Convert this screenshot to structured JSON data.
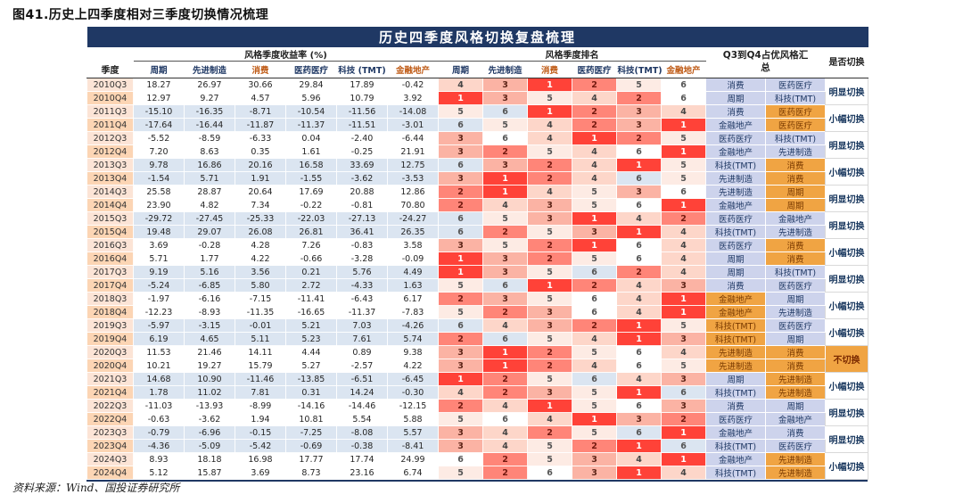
{
  "figure": {
    "caption": "图41.历史上四季度相对三季度切换情况梳理",
    "source": "资料来源：Wind、国投证券研究所"
  },
  "chart_data": {
    "type": "table",
    "title": "历史四季度风格切换复盘梳理",
    "quarter_col_header": "季度",
    "group_headers": {
      "returns": "风格季度收益率 (%)",
      "ranks": "风格季度排名",
      "summary": "Q3到Q4占优风格汇总",
      "switch": "是否切换"
    },
    "style_columns_returns": [
      "周期",
      "先进制造",
      "消费",
      "医药医疗",
      "科技 (TMT)",
      "金融地产"
    ],
    "style_columns_ranks": [
      "周期",
      "先进制造",
      "消费",
      "医药医疗",
      "科技(TMT)",
      "金融地产"
    ],
    "rows": [
      {
        "q": "2010Q3",
        "returns": [
          "18.27",
          "26.97",
          "30.66",
          "29.84",
          "17.89",
          "-0.42"
        ],
        "ranks": [
          4,
          3,
          1,
          2,
          5,
          6
        ],
        "top2": [
          "消费",
          "医药医疗"
        ],
        "top2_hl": [
          false,
          false
        ],
        "switch_label": "明显切换",
        "switch_hl": false
      },
      {
        "q": "2010Q4",
        "returns": [
          "12.97",
          "9.27",
          "4.57",
          "5.96",
          "10.79",
          "3.92"
        ],
        "ranks": [
          1,
          3,
          5,
          4,
          2,
          6
        ],
        "top2": [
          "周期",
          "科技(TMT)"
        ],
        "top2_hl": [
          false,
          false
        ]
      },
      {
        "q": "2011Q3",
        "returns": [
          "-15.10",
          "-16.35",
          "-8.71",
          "-10.54",
          "-11.56",
          "-14.08"
        ],
        "ranks": [
          5,
          6,
          1,
          2,
          3,
          4
        ],
        "top2": [
          "消费",
          "医药医疗"
        ],
        "top2_hl": [
          false,
          true
        ],
        "switch_label": "小幅切换",
        "switch_hl": false
      },
      {
        "q": "2011Q4",
        "returns": [
          "-17.64",
          "-16.44",
          "-11.87",
          "-11.37",
          "-11.51",
          "-3.01"
        ],
        "ranks": [
          6,
          5,
          4,
          2,
          3,
          1
        ],
        "top2": [
          "金融地产",
          "医药医疗"
        ],
        "top2_hl": [
          false,
          true
        ]
      },
      {
        "q": "2012Q3",
        "returns": [
          "-5.52",
          "-8.59",
          "-6.33",
          "0.04",
          "-2.40",
          "-6.44"
        ],
        "ranks": [
          3,
          6,
          4,
          1,
          2,
          5
        ],
        "top2": [
          "医药医疗",
          "科技(TMT)"
        ],
        "top2_hl": [
          false,
          false
        ],
        "switch_label": "明显切换",
        "switch_hl": false
      },
      {
        "q": "2012Q4",
        "returns": [
          "7.20",
          "8.63",
          "0.35",
          "1.61",
          "-0.25",
          "21.91"
        ],
        "ranks": [
          3,
          2,
          5,
          4,
          6,
          1
        ],
        "top2": [
          "金融地产",
          "先进制造"
        ],
        "top2_hl": [
          false,
          false
        ]
      },
      {
        "q": "2013Q3",
        "returns": [
          "9.78",
          "16.86",
          "20.16",
          "16.58",
          "33.69",
          "12.75"
        ],
        "ranks": [
          6,
          3,
          2,
          4,
          1,
          5
        ],
        "top2": [
          "科技(TMT)",
          "消费"
        ],
        "top2_hl": [
          false,
          true
        ],
        "switch_label": "小幅切换",
        "switch_hl": false
      },
      {
        "q": "2013Q4",
        "returns": [
          "-1.54",
          "5.71",
          "1.91",
          "-1.55",
          "-3.62",
          "-3.53"
        ],
        "ranks": [
          3,
          1,
          2,
          4,
          6,
          5
        ],
        "top2": [
          "先进制造",
          "消费"
        ],
        "top2_hl": [
          false,
          true
        ]
      },
      {
        "q": "2014Q3",
        "returns": [
          "25.58",
          "28.87",
          "20.64",
          "17.69",
          "20.88",
          "12.86"
        ],
        "ranks": [
          2,
          1,
          4,
          5,
          3,
          6
        ],
        "top2": [
          "先进制造",
          "周期"
        ],
        "top2_hl": [
          false,
          true
        ],
        "switch_label": "明显切换",
        "switch_hl": false
      },
      {
        "q": "2014Q4",
        "returns": [
          "23.90",
          "4.82",
          "7.34",
          "-0.22",
          "-0.81",
          "70.80"
        ],
        "ranks": [
          2,
          4,
          3,
          5,
          6,
          1
        ],
        "top2": [
          "金融地产",
          "周期"
        ],
        "top2_hl": [
          false,
          true
        ]
      },
      {
        "q": "2015Q3",
        "returns": [
          "-29.72",
          "-27.45",
          "-25.33",
          "-22.03",
          "-27.13",
          "-24.27"
        ],
        "ranks": [
          6,
          5,
          3,
          1,
          4,
          2
        ],
        "top2": [
          "医药医疗",
          "金融地产"
        ],
        "top2_hl": [
          false,
          false
        ],
        "switch_label": "明显切换",
        "switch_hl": false
      },
      {
        "q": "2015Q4",
        "returns": [
          "19.48",
          "29.07",
          "26.08",
          "26.81",
          "36.41",
          "26.35"
        ],
        "ranks": [
          6,
          2,
          5,
          3,
          1,
          4
        ],
        "top2": [
          "科技(TMT)",
          "先进制造"
        ],
        "top2_hl": [
          false,
          false
        ]
      },
      {
        "q": "2016Q3",
        "returns": [
          "3.69",
          "-0.28",
          "4.28",
          "7.26",
          "-0.83",
          "3.58"
        ],
        "ranks": [
          3,
          5,
          2,
          1,
          6,
          4
        ],
        "top2": [
          "医药医疗",
          "消费"
        ],
        "top2_hl": [
          false,
          true
        ],
        "switch_label": "小幅切换",
        "switch_hl": false
      },
      {
        "q": "2016Q4",
        "returns": [
          "5.71",
          "1.77",
          "4.22",
          "-0.66",
          "-3.28",
          "-0.09"
        ],
        "ranks": [
          1,
          3,
          2,
          5,
          6,
          4
        ],
        "top2": [
          "周期",
          "消费"
        ],
        "top2_hl": [
          false,
          true
        ]
      },
      {
        "q": "2017Q3",
        "returns": [
          "9.19",
          "5.16",
          "3.56",
          "0.21",
          "5.76",
          "4.49"
        ],
        "ranks": [
          1,
          3,
          5,
          6,
          2,
          4
        ],
        "top2": [
          "周期",
          "科技(TMT)"
        ],
        "top2_hl": [
          false,
          false
        ],
        "switch_label": "明显切换",
        "switch_hl": false
      },
      {
        "q": "2017Q4",
        "returns": [
          "-5.24",
          "-6.85",
          "5.80",
          "2.72",
          "-4.33",
          "1.63"
        ],
        "ranks": [
          5,
          6,
          1,
          2,
          4,
          3
        ],
        "top2": [
          "消费",
          "医药医疗"
        ],
        "top2_hl": [
          false,
          false
        ]
      },
      {
        "q": "2018Q3",
        "returns": [
          "-1.97",
          "-6.16",
          "-7.15",
          "-11.41",
          "-6.43",
          "6.17"
        ],
        "ranks": [
          2,
          3,
          5,
          6,
          4,
          1
        ],
        "top2": [
          "金融地产",
          "周期"
        ],
        "top2_hl": [
          true,
          false
        ],
        "switch_label": "小幅切换",
        "switch_hl": false
      },
      {
        "q": "2018Q4",
        "returns": [
          "-12.23",
          "-8.93",
          "-11.35",
          "-16.65",
          "-11.37",
          "-7.83"
        ],
        "ranks": [
          5,
          2,
          3,
          6,
          4,
          1
        ],
        "top2": [
          "金融地产",
          "先进制造"
        ],
        "top2_hl": [
          true,
          false
        ]
      },
      {
        "q": "2019Q3",
        "returns": [
          "-5.97",
          "-3.15",
          "-0.01",
          "5.21",
          "7.03",
          "-4.26"
        ],
        "ranks": [
          6,
          4,
          3,
          2,
          1,
          5
        ],
        "top2": [
          "科技(TMT)",
          "医药医疗"
        ],
        "top2_hl": [
          true,
          false
        ],
        "switch_label": "小幅切换",
        "switch_hl": false
      },
      {
        "q": "2019Q4",
        "returns": [
          "6.19",
          "4.65",
          "5.11",
          "5.23",
          "7.61",
          "5.74"
        ],
        "ranks": [
          2,
          6,
          5,
          4,
          1,
          3
        ],
        "top2": [
          "科技(TMT)",
          "周期"
        ],
        "top2_hl": [
          true,
          false
        ]
      },
      {
        "q": "2020Q3",
        "returns": [
          "11.53",
          "21.46",
          "14.11",
          "4.44",
          "0.89",
          "9.38"
        ],
        "ranks": [
          3,
          1,
          2,
          5,
          6,
          4
        ],
        "top2": [
          "先进制造",
          "消费"
        ],
        "top2_hl": [
          true,
          true
        ],
        "switch_label": "不切换",
        "switch_hl": true
      },
      {
        "q": "2020Q4",
        "returns": [
          "10.21",
          "19.27",
          "15.79",
          "5.27",
          "-2.57",
          "4.22"
        ],
        "ranks": [
          3,
          1,
          2,
          4,
          6,
          5
        ],
        "top2": [
          "先进制造",
          "消费"
        ],
        "top2_hl": [
          true,
          true
        ]
      },
      {
        "q": "2021Q3",
        "returns": [
          "14.68",
          "10.90",
          "-11.46",
          "-13.85",
          "-6.51",
          "-6.45"
        ],
        "ranks": [
          1,
          2,
          5,
          6,
          4,
          3
        ],
        "top2": [
          "周期",
          "先进制造"
        ],
        "top2_hl": [
          false,
          true
        ],
        "switch_label": "小幅切换",
        "switch_hl": false
      },
      {
        "q": "2021Q4",
        "returns": [
          "1.78",
          "11.02",
          "7.81",
          "0.31",
          "14.24",
          "-0.30"
        ],
        "ranks": [
          4,
          2,
          3,
          5,
          1,
          6
        ],
        "top2": [
          "科技(TMT)",
          "先进制造"
        ],
        "top2_hl": [
          false,
          true
        ]
      },
      {
        "q": "2022Q3",
        "returns": [
          "-11.03",
          "-13.93",
          "-8.99",
          "-14.16",
          "-14.46",
          "-12.15"
        ],
        "ranks": [
          2,
          4,
          1,
          5,
          6,
          3
        ],
        "top2": [
          "消费",
          "周期"
        ],
        "top2_hl": [
          false,
          false
        ],
        "switch_label": "明显切换",
        "switch_hl": false
      },
      {
        "q": "2022Q4",
        "returns": [
          "-0.63",
          "-3.62",
          "1.94",
          "10.81",
          "5.54",
          "5.88"
        ],
        "ranks": [
          5,
          6,
          4,
          1,
          3,
          2
        ],
        "top2": [
          "医药医疗",
          "金融地产"
        ],
        "top2_hl": [
          false,
          false
        ]
      },
      {
        "q": "2023Q3",
        "returns": [
          "-0.79",
          "-6.96",
          "-0.15",
          "-7.25",
          "-8.08",
          "5.57"
        ],
        "ranks": [
          3,
          4,
          2,
          5,
          6,
          1
        ],
        "top2": [
          "金融地产",
          "消费"
        ],
        "top2_hl": [
          false,
          false
        ],
        "switch_label": "明显切换",
        "switch_hl": false
      },
      {
        "q": "2023Q4",
        "returns": [
          "-4.36",
          "-5.09",
          "-5.42",
          "-0.69",
          "-0.38",
          "-8.41"
        ],
        "ranks": [
          3,
          4,
          5,
          2,
          1,
          6
        ],
        "top2": [
          "科技(TMT)",
          "医药医疗"
        ],
        "top2_hl": [
          false,
          false
        ]
      },
      {
        "q": "2024Q3",
        "returns": [
          "8.93",
          "18.18",
          "16.98",
          "17.77",
          "17.74",
          "24.99"
        ],
        "ranks": [
          6,
          2,
          5,
          3,
          4,
          1
        ],
        "top2": [
          "金融地产",
          "先进制造"
        ],
        "top2_hl": [
          false,
          true
        ],
        "switch_label": "小幅切换",
        "switch_hl": false
      },
      {
        "q": "2024Q4",
        "returns": [
          "5.12",
          "15.87",
          "3.69",
          "8.73",
          "23.16",
          "6.74"
        ],
        "ranks": [
          5,
          2,
          6,
          3,
          1,
          4
        ],
        "top2": [
          "科技(TMT)",
          "先进制造"
        ],
        "top2_hl": [
          false,
          true
        ]
      }
    ]
  },
  "colors": {
    "banner_bg": "#1f3864",
    "header_text": "#1f3864",
    "header_text_alt": "#bf5b16",
    "q3_bg": "#fce4d6",
    "q4_bg": "#fcd5b4",
    "stripe_bg": "#dbe5f1",
    "summary_bg": "#cdd3ec",
    "highlight_orange": "#f0a443",
    "switch_text": "#17365d",
    "rank_scale": [
      "#ff4238",
      "#ff8578",
      "#fbb3a4",
      "#fdd6c9",
      "#fdebe4",
      "transparent"
    ],
    "rank_text": [
      "#ffffff",
      "#73190f",
      "#5f2619",
      "#444444",
      "#555555",
      "#555555"
    ]
  }
}
